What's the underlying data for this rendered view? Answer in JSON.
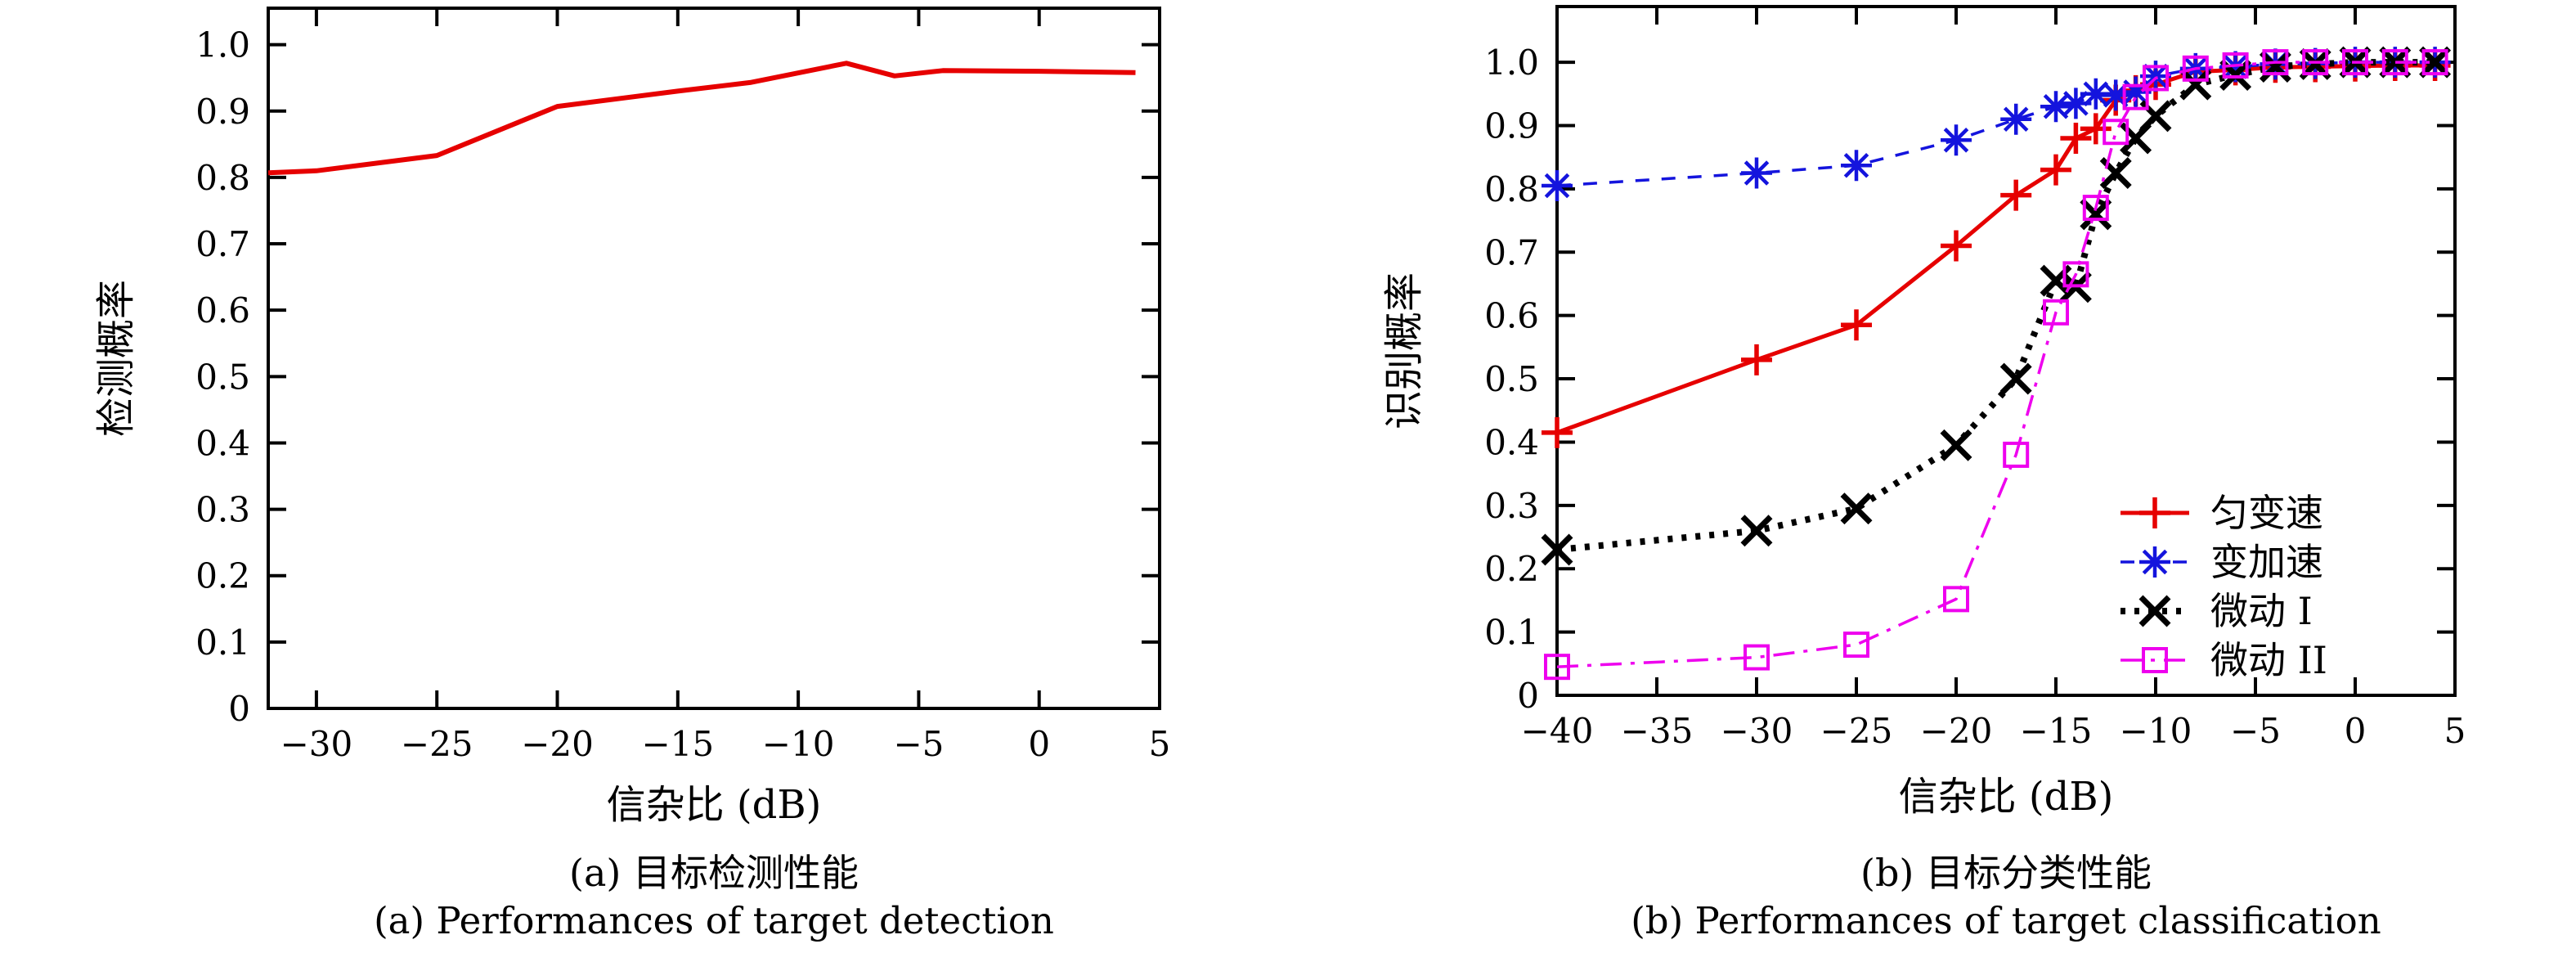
{
  "figure": {
    "background": "#ffffff",
    "axis_color": "#000000"
  },
  "chart_data": [
    {
      "type": "line",
      "id": "a",
      "ylabel": "检测概率",
      "xlabel": "信杂比 (dB)",
      "caption_cn": "(a) 目标检测性能",
      "caption_en": "(a) Performances of target detection",
      "xlim": [
        -32,
        5
      ],
      "ylim": [
        0,
        1.055
      ],
      "grid": false,
      "xtick_values": [
        -30,
        -25,
        -20,
        -15,
        -10,
        -5,
        0,
        5
      ],
      "xtick_labels": [
        "−30",
        "−25",
        "−20",
        "−15",
        "−10",
        "−5",
        "0",
        "5"
      ],
      "ytick_values": [
        0,
        0.1,
        0.2,
        0.3,
        0.4,
        0.5,
        0.6,
        0.7,
        0.8,
        0.9,
        1.0
      ],
      "ytick_labels": [
        "0",
        "0.1",
        "0.2",
        "0.3",
        "0.4",
        "0.5",
        "0.6",
        "0.7",
        "0.8",
        "0.9",
        "1.0"
      ],
      "legend": null,
      "series": [
        {
          "name": "检测概率",
          "color": "#e60000",
          "line": "solid",
          "line_width": 6,
          "marker": "none",
          "x": [
            -32,
            -30,
            -25,
            -20,
            -15,
            -12,
            -8,
            -6,
            -4,
            0,
            4
          ],
          "y": [
            0.807,
            0.81,
            0.833,
            0.907,
            0.93,
            0.943,
            0.972,
            0.953,
            0.961,
            0.96,
            0.958
          ]
        }
      ]
    },
    {
      "type": "line",
      "id": "b",
      "ylabel": "识别概率",
      "xlabel": "信杂比 (dB)",
      "caption_cn": "(b) 目标分类性能",
      "caption_en": "(b) Performances of target classification",
      "xlim": [
        -40,
        5
      ],
      "ylim": [
        0,
        1.088
      ],
      "grid": false,
      "xtick_values": [
        -40,
        -35,
        -30,
        -25,
        -20,
        -15,
        -10,
        -5,
        0,
        5
      ],
      "xtick_labels": [
        "−40",
        "−35",
        "−30",
        "−25",
        "−20",
        "−15",
        "−10",
        "−5",
        "0",
        "5"
      ],
      "ytick_values": [
        0,
        0.1,
        0.2,
        0.3,
        0.4,
        0.5,
        0.6,
        0.7,
        0.8,
        0.9,
        1.0
      ],
      "ytick_labels": [
        "0",
        "0.1",
        "0.2",
        "0.3",
        "0.4",
        "0.5",
        "0.6",
        "0.7",
        "0.8",
        "0.9",
        "1.0"
      ],
      "legend": {
        "position": "inside-right-lower",
        "entries": [
          "匀变速",
          "变加速",
          "微动 I",
          "微动 II"
        ]
      },
      "series": [
        {
          "name": "匀变速",
          "color": "#e60000",
          "line": "solid",
          "line_width": 5,
          "marker": "plus",
          "x": [
            -40,
            -30,
            -25,
            -20,
            -17,
            -15,
            -14,
            -13,
            -12,
            -11,
            -10,
            -8,
            -6,
            -4,
            -2,
            0,
            2,
            4
          ],
          "y": [
            0.415,
            0.53,
            0.585,
            0.71,
            0.79,
            0.83,
            0.88,
            0.895,
            0.94,
            0.955,
            0.965,
            0.985,
            0.988,
            0.992,
            0.993,
            0.994,
            0.995,
            0.995
          ]
        },
        {
          "name": "变加速",
          "color": "#1414dd",
          "line": "dashed",
          "line_width": 3.5,
          "marker": "asterisk",
          "x": [
            -40,
            -30,
            -25,
            -20,
            -17,
            -15,
            -14,
            -13,
            -12,
            -11,
            -10,
            -8,
            -6,
            -4,
            -2,
            0,
            2,
            4
          ],
          "y": [
            0.805,
            0.825,
            0.837,
            0.877,
            0.91,
            0.93,
            0.935,
            0.95,
            0.948,
            0.953,
            0.978,
            0.99,
            0.993,
            0.997,
            0.998,
            1.0,
            1.0,
            1.0
          ]
        },
        {
          "name": "微动 I",
          "color": "#000000",
          "line": "dotted",
          "line_width": 8,
          "marker": "cross",
          "x": [
            -40,
            -30,
            -25,
            -20,
            -17,
            -15,
            -14,
            -13,
            -12,
            -11,
            -10,
            -8,
            -6,
            -4,
            -2,
            0,
            2,
            4
          ],
          "y": [
            0.23,
            0.26,
            0.295,
            0.395,
            0.5,
            0.655,
            0.645,
            0.76,
            0.825,
            0.88,
            0.915,
            0.965,
            0.98,
            0.993,
            0.997,
            1.0,
            1.0,
            1.0
          ]
        },
        {
          "name": "微动 II",
          "color": "#ee00ee",
          "line": "dashdot",
          "line_width": 3.5,
          "marker": "square",
          "x": [
            -40,
            -30,
            -25,
            -20,
            -17,
            -15,
            -14,
            -13,
            -12,
            -11,
            -10,
            -8,
            -6,
            -4,
            -2,
            0,
            2,
            4
          ],
          "y": [
            0.045,
            0.06,
            0.08,
            0.152,
            0.38,
            0.605,
            0.665,
            0.77,
            0.89,
            0.945,
            0.975,
            0.99,
            0.995,
            1.0,
            1.0,
            1.0,
            1.0,
            1.0
          ]
        }
      ]
    }
  ]
}
